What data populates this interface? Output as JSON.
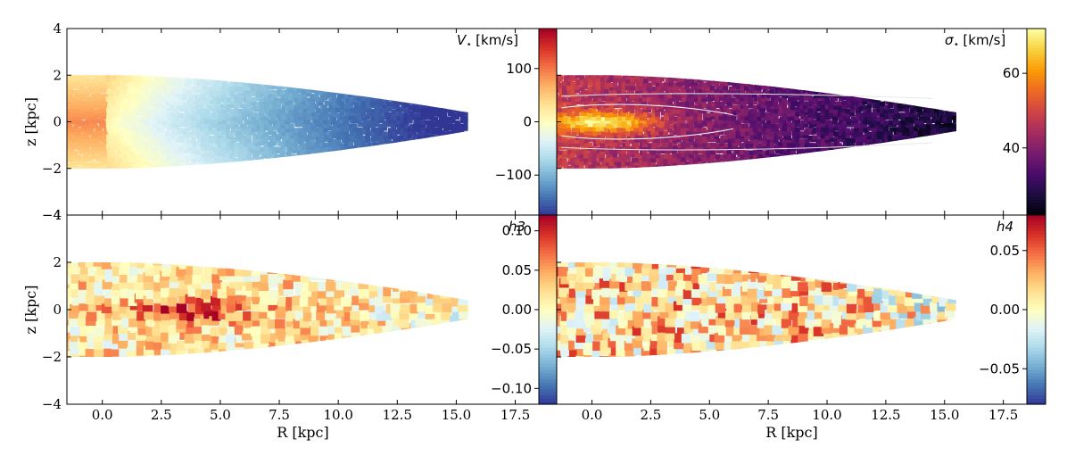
{
  "chart_data": [
    {
      "type": "heatmap",
      "panel": "top-left",
      "title_symbol": "V",
      "title_subscript": "⋆",
      "title_units": "[km/s]",
      "ylabel": "z [kpc]",
      "xlim": [
        -1.5,
        18.5
      ],
      "ylim": [
        -4,
        4
      ],
      "x_ticks": [
        0.0,
        2.5,
        5.0,
        7.5,
        10.0,
        12.5,
        15.0,
        17.5
      ],
      "y_ticks": [
        -4,
        -2,
        0,
        2,
        4
      ],
      "y_tick_labels": [
        "−4",
        "−2",
        "0",
        "2",
        "4"
      ],
      "colormap": "RdYlBu_r",
      "colorbar": {
        "range": [
          -175,
          175
        ],
        "ticks": [
          -100,
          0,
          100
        ],
        "tick_labels": [
          "−100",
          "0",
          "100"
        ]
      },
      "disk_field": {
        "x_range": [
          -1.5,
          15.5
        ],
        "center_value": 100,
        "edge_value": -160,
        "description_trend": "velocity decreases from positive near center to strongly negative at large R"
      }
    },
    {
      "type": "heatmap",
      "panel": "top-right",
      "title_symbol": "σ",
      "title_subscript": "⋆",
      "title_units": "[km/s]",
      "xlim": [
        -1.5,
        18.5
      ],
      "ylim": [
        -4,
        4
      ],
      "x_ticks": [
        0.0,
        2.5,
        5.0,
        7.5,
        10.0,
        12.5,
        15.0,
        17.5
      ],
      "colormap": "inferno",
      "colorbar": {
        "range": [
          22,
          72
        ],
        "ticks": [
          40,
          60
        ],
        "tick_labels": [
          "40",
          "60"
        ]
      },
      "disk_field": {
        "x_range": [
          -1.5,
          15.5
        ],
        "center_value": 70,
        "edge_value": 25
      }
    },
    {
      "type": "heatmap",
      "panel": "bottom-left",
      "title_symbol": "h3",
      "xlabel": "R [kpc]",
      "ylabel": "z [kpc]",
      "xlim": [
        -1.5,
        18.5
      ],
      "ylim": [
        -4,
        4
      ],
      "x_ticks": [
        0.0,
        2.5,
        5.0,
        7.5,
        10.0,
        12.5,
        15.0,
        17.5
      ],
      "x_tick_labels": [
        "0.0",
        "2.5",
        "5.0",
        "7.5",
        "10.0",
        "12.5",
        "15.0",
        "17.5"
      ],
      "y_ticks": [
        -4,
        -2,
        0,
        2,
        4
      ],
      "y_tick_labels": [
        "−4",
        "−2",
        "0",
        "2",
        "4"
      ],
      "colormap": "RdYlBu_r",
      "colorbar": {
        "range": [
          -0.12,
          0.12
        ],
        "ticks": [
          -0.1,
          -0.05,
          0.0,
          0.05,
          0.1
        ],
        "tick_labels": [
          "−0.10",
          "−0.05",
          "0.00",
          "0.05",
          "0.10"
        ]
      },
      "disk_field": {
        "x_range": [
          -1.5,
          15.5
        ],
        "peak_value": 0.1,
        "peak_location_R": 4.0
      }
    },
    {
      "type": "heatmap",
      "panel": "bottom-right",
      "title_symbol": "h4",
      "xlabel": "R [kpc]",
      "xlim": [
        -1.5,
        18.5
      ],
      "ylim": [
        -4,
        4
      ],
      "x_ticks": [
        0.0,
        2.5,
        5.0,
        7.5,
        10.0,
        12.5,
        15.0,
        17.5
      ],
      "x_tick_labels": [
        "0.0",
        "2.5",
        "5.0",
        "7.5",
        "10.0",
        "12.5",
        "15.0",
        "17.5"
      ],
      "colormap": "RdYlBu_r",
      "colorbar": {
        "range": [
          -0.08,
          0.08
        ],
        "ticks": [
          -0.05,
          0.0,
          0.05
        ],
        "tick_labels": [
          "−0.05",
          "0.00",
          "0.05"
        ]
      },
      "disk_field": {
        "x_range": [
          -1.5,
          15.5
        ],
        "typical_value": 0.03
      }
    }
  ]
}
